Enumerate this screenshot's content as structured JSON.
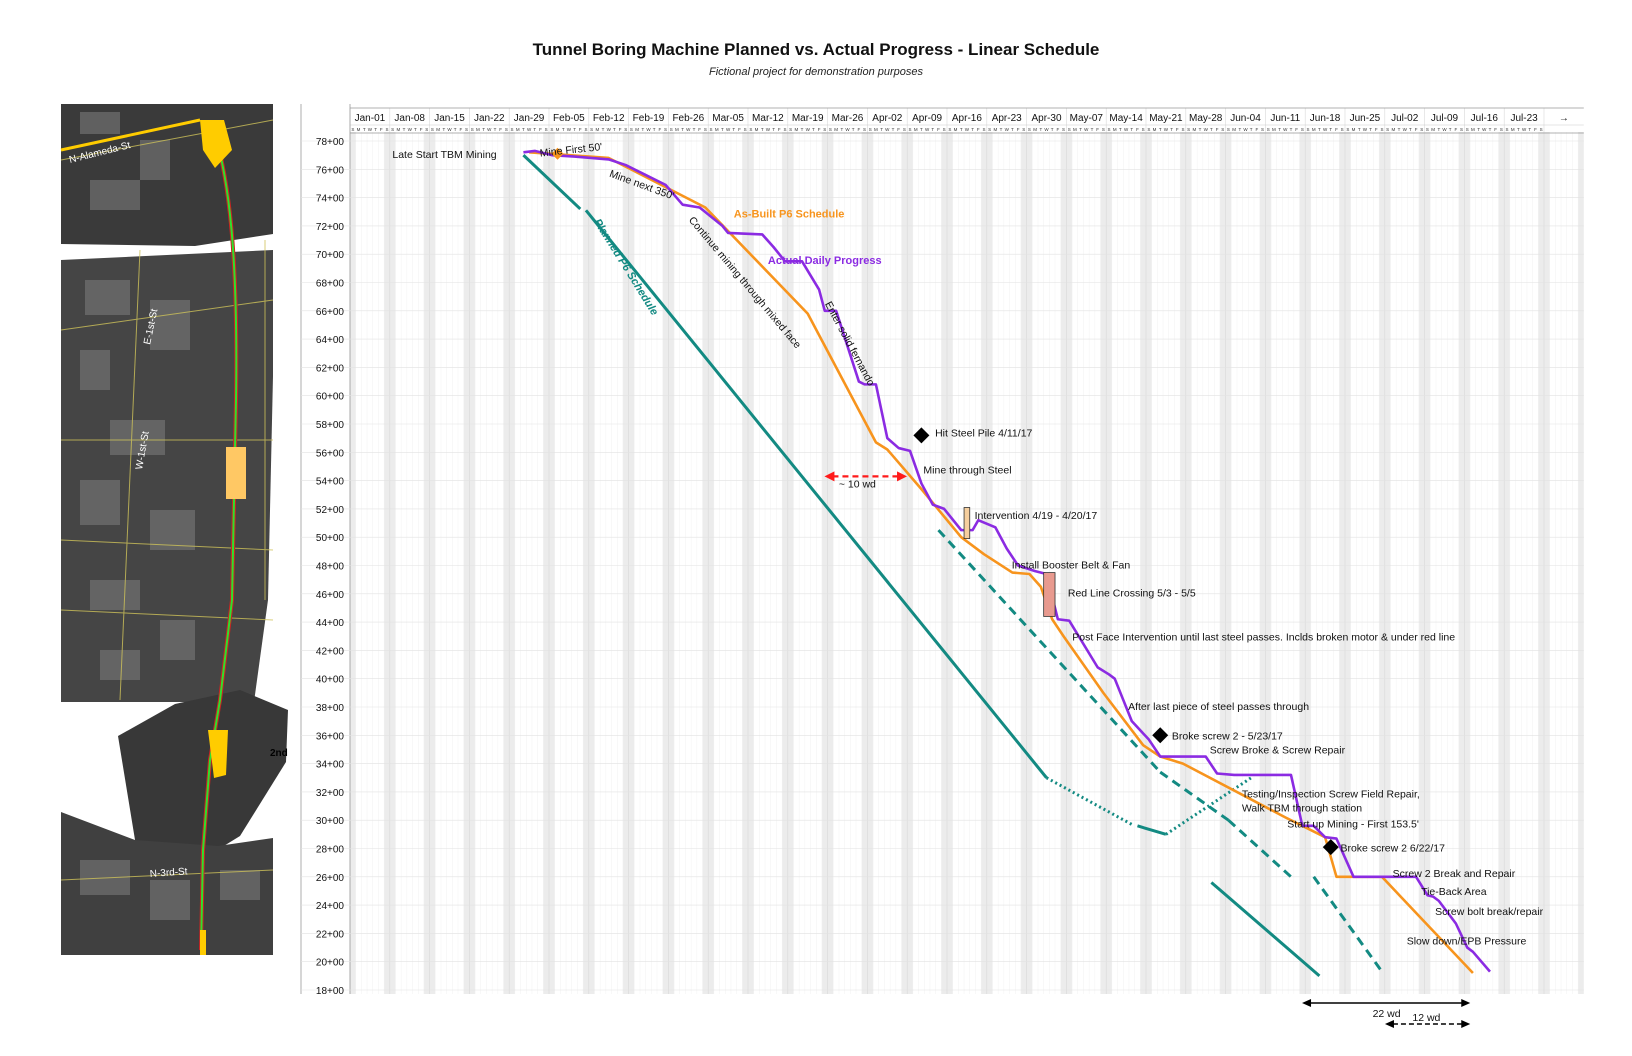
{
  "chart_data": {
    "type": "line",
    "title": "Tunnel Boring Machine Planned vs. Actual Progress - Linear Schedule",
    "subtitle": "Fictional project for demonstration purposes",
    "x_axis": {
      "week_labels": [
        "Jan-01",
        "Jan-08",
        "Jan-15",
        "Jan-22",
        "Jan-29",
        "Feb-05",
        "Feb-12",
        "Feb-19",
        "Feb-26",
        "Mar-05",
        "Mar-12",
        "Mar-19",
        "Mar-26",
        "Apr-02",
        "Apr-09",
        "Apr-16",
        "Apr-23",
        "Apr-30",
        "May-07",
        "May-14",
        "May-21",
        "May-28",
        "Jun-04",
        "Jun-11",
        "Jun-18",
        "Jun-25",
        "Jul-02",
        "Jul-09",
        "Jul-16",
        "Jul-23",
        "→"
      ],
      "day_letters": "SMTWTFS"
    },
    "y_axis": {
      "tick_labels": [
        "78+00",
        "76+00",
        "74+00",
        "72+00",
        "70+00",
        "68+00",
        "66+00",
        "64+00",
        "62+00",
        "60+00",
        "58+00",
        "56+00",
        "54+00",
        "52+00",
        "50+00",
        "48+00",
        "46+00",
        "44+00",
        "42+00",
        "40+00",
        "38+00",
        "36+00",
        "34+00",
        "32+00",
        "30+00",
        "28+00",
        "26+00",
        "24+00",
        "22+00",
        "20+00",
        "18+00"
      ],
      "ylim": [
        "78+00",
        "18+00"
      ]
    },
    "series": [
      {
        "name": "Planned P6 Schedule",
        "color": "#138a82",
        "segments": [
          {
            "style": "solid",
            "points": [
              [
                "Jan-31",
                77.0
              ],
              [
                "Feb-10",
                73.2
              ]
            ]
          },
          {
            "style": "solid",
            "points": [
              [
                "Feb-11",
                73.1
              ],
              [
                "May-03",
                33.0
              ]
            ]
          },
          {
            "style": "dotted",
            "points": [
              [
                "May-03",
                33.0
              ],
              [
                "May-18",
                29.7
              ]
            ]
          },
          {
            "style": "solid",
            "points": [
              [
                "May-19",
                29.6
              ],
              [
                "May-24",
                29.0
              ]
            ]
          },
          {
            "style": "dotted",
            "points": [
              [
                "May-24",
                29.0
              ],
              [
                "Jun-08",
                33.0
              ]
            ]
          },
          {
            "style": "solid",
            "points": [
              [
                "Jun-01",
                25.6
              ],
              [
                "Jun-20",
                19.0
              ]
            ]
          },
          {
            "style": "dashed",
            "points": [
              [
                "Apr-14",
                50.5
              ],
              [
                "May-23",
                33.4
              ]
            ]
          },
          {
            "style": "dashed",
            "points": [
              [
                "May-23",
                33.4
              ],
              [
                "Jun-04",
                30.0
              ]
            ]
          },
          {
            "style": "dashed",
            "points": [
              [
                "Jun-04",
                30.0
              ],
              [
                "Jun-15",
                26.0
              ]
            ]
          },
          {
            "style": "dashed",
            "points": [
              [
                "Jun-19",
                26.0
              ],
              [
                "Jul-01",
                19.3
              ]
            ]
          }
        ]
      },
      {
        "name": "As-Built P6 Schedule",
        "color": "#f7941d",
        "points": [
          [
            "Feb-01",
            77.2
          ],
          [
            "Feb-15",
            76.8
          ],
          [
            "Mar-04",
            73.3
          ],
          [
            "Mar-22",
            65.8
          ],
          [
            "Apr-03",
            56.7
          ],
          [
            "Apr-05",
            56.2
          ],
          [
            "Apr-11",
            53.4
          ],
          [
            "Apr-18",
            50.0
          ],
          [
            "Apr-22",
            48.8
          ],
          [
            "Apr-27",
            47.5
          ],
          [
            "Apr-30",
            47.4
          ],
          [
            "May-02",
            46.5
          ],
          [
            "May-04",
            44.2
          ],
          [
            "May-06",
            43.0
          ],
          [
            "May-13",
            39.0
          ],
          [
            "May-20",
            35.3
          ],
          [
            "May-23",
            34.5
          ],
          [
            "May-27",
            34.0
          ],
          [
            "Jun-14",
            30.2
          ],
          [
            "Jun-21",
            28.8
          ],
          [
            "Jun-23",
            26.0
          ],
          [
            "Jul-01",
            26.0
          ],
          [
            "Jul-17",
            19.2
          ]
        ]
      },
      {
        "name": "Actual Daily Progress",
        "color": "#8b2be2",
        "points": [
          [
            "Jan-31",
            77.2
          ],
          [
            "Feb-02",
            77.3
          ],
          [
            "Feb-05",
            77.0
          ],
          [
            "Feb-09",
            76.9
          ],
          [
            "Feb-15",
            76.7
          ],
          [
            "Feb-18",
            76.3
          ],
          [
            "Feb-21",
            75.7
          ],
          [
            "Feb-25",
            74.9
          ],
          [
            "Feb-28",
            73.5
          ],
          [
            "Mar-03",
            73.3
          ],
          [
            "Mar-07",
            72.0
          ],
          [
            "Mar-08",
            71.5
          ],
          [
            "Mar-14",
            71.4
          ],
          [
            "Mar-16",
            70.5
          ],
          [
            "Mar-18",
            69.5
          ],
          [
            "Mar-21",
            69.5
          ],
          [
            "Mar-24",
            67.5
          ],
          [
            "Mar-25",
            66.0
          ],
          [
            "Mar-27",
            66.0
          ],
          [
            "Mar-31",
            61.0
          ],
          [
            "Apr-01",
            60.8
          ],
          [
            "Apr-03",
            60.8
          ],
          [
            "Apr-05",
            57.0
          ],
          [
            "Apr-07",
            56.3
          ],
          [
            "Apr-09",
            56.1
          ],
          [
            "Apr-11",
            53.8
          ],
          [
            "Apr-13",
            52.3
          ],
          [
            "Apr-15",
            52.0
          ],
          [
            "Apr-18",
            50.5
          ],
          [
            "Apr-20",
            50.5
          ],
          [
            "Apr-21",
            51.2
          ],
          [
            "Apr-24",
            50.7
          ],
          [
            "Apr-26",
            49.2
          ],
          [
            "Apr-28",
            48.0
          ],
          [
            "May-01",
            47.6
          ],
          [
            "May-03",
            47.4
          ],
          [
            "May-05",
            44.2
          ],
          [
            "May-07",
            44.1
          ],
          [
            "May-12",
            40.8
          ],
          [
            "May-14",
            40.3
          ],
          [
            "May-15",
            40.0
          ],
          [
            "May-18",
            37.0
          ],
          [
            "May-21",
            35.7
          ],
          [
            "May-23",
            34.5
          ],
          [
            "May-31",
            34.5
          ],
          [
            "Jun-02",
            33.3
          ],
          [
            "Jun-05",
            33.2
          ],
          [
            "Jun-15",
            33.2
          ],
          [
            "Jun-17",
            29.6
          ],
          [
            "Jun-19",
            29.6
          ],
          [
            "Jun-21",
            28.8
          ],
          [
            "Jun-23",
            28.7
          ],
          [
            "Jun-26",
            26.0
          ],
          [
            "Jul-07",
            26.0
          ],
          [
            "Jul-09",
            24.7
          ],
          [
            "Jul-10",
            24.6
          ],
          [
            "Jul-11",
            24.3
          ],
          [
            "Jul-14",
            22.7
          ],
          [
            "Jul-16",
            21.0
          ],
          [
            "Jul-17",
            20.7
          ],
          [
            "Jul-20",
            19.3
          ]
        ]
      }
    ],
    "series_labels": [
      {
        "text": "Planned P6 Schedule",
        "series": "Planned P6 Schedule"
      },
      {
        "text": "As-Built P6 Schedule",
        "series": "As-Built P6 Schedule"
      },
      {
        "text": "Actual Daily Progress",
        "series": "Actual Daily Progress"
      }
    ],
    "annotations": [
      {
        "text": "Late Start TBM Mining"
      },
      {
        "text": "Mine First 50'"
      },
      {
        "text": "Mine next 350'"
      },
      {
        "text": "Continue mining through mixed face"
      },
      {
        "text": "Enter solid fernando"
      },
      {
        "text": "Hit Steel Pile 4/11/17"
      },
      {
        "text": "Mine through Steel"
      },
      {
        "text": "~ 10 wd"
      },
      {
        "text": "Intervention 4/19 - 4/20/17"
      },
      {
        "text": "Install Booster Belt & Fan"
      },
      {
        "text": "Red Line Crossing 5/3 - 5/5"
      },
      {
        "text": "Post Face Intervention until last steel passes. Inclds broken motor & under red line"
      },
      {
        "text": "After last piece of steel passes through"
      },
      {
        "text": "Broke screw 2 - 5/23/17"
      },
      {
        "text": "Screw Broke & Screw Repair"
      },
      {
        "text": "Testing/Inspection Screw Field Repair,"
      },
      {
        "text": "Walk TBM through station"
      },
      {
        "text": "Start up Mining - First 153.5'"
      },
      {
        "text": "Broke screw 2 6/22/17"
      },
      {
        "text": "Screw 2 Break and Repair"
      },
      {
        "text": "Tie-Back Area"
      },
      {
        "text": "Screw bolt break/repair"
      },
      {
        "text": "Slow down/EPB Pressure"
      },
      {
        "text": "22 wd"
      },
      {
        "text": "12 wd"
      }
    ],
    "map_labels": {
      "street_1": "N-Alameda-St",
      "street_2": "E-1st-St",
      "street_3": "W-1st-St",
      "street_4": "N-3rd-St",
      "street_5": "2nd"
    }
  }
}
